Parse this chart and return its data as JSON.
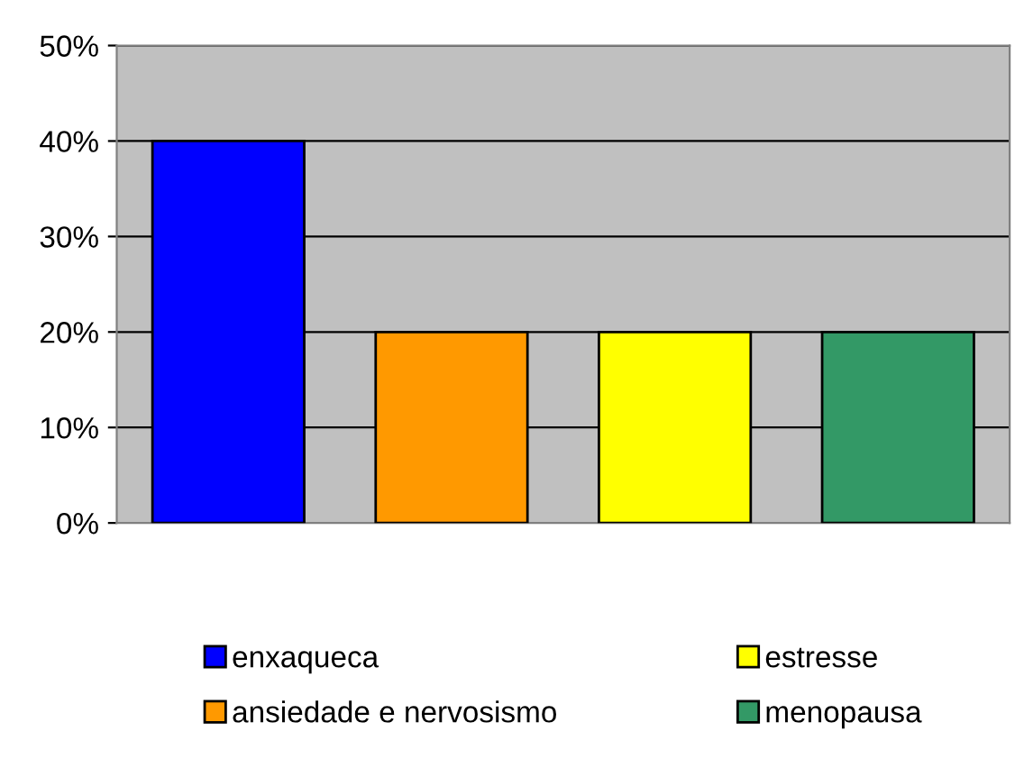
{
  "chart_data": {
    "type": "bar",
    "categories": [
      null,
      null,
      null,
      null
    ],
    "series": [
      {
        "name": "enxaqueca",
        "color": "#0000ff",
        "values": [
          40,
          null,
          null,
          null
        ]
      },
      {
        "name": "ansiedade e nervosismo",
        "color": "#ff9900",
        "values": [
          null,
          20,
          null,
          null
        ]
      },
      {
        "name": "estresse",
        "color": "#ffff00",
        "values": [
          null,
          null,
          20,
          null
        ]
      },
      {
        "name": "menopausa",
        "color": "#339966",
        "values": [
          null,
          null,
          null,
          20
        ]
      }
    ],
    "ylim": [
      0,
      50
    ],
    "yticks": [
      {
        "value": 0,
        "label": "0%"
      },
      {
        "value": 10,
        "label": "10%"
      },
      {
        "value": 20,
        "label": "20%"
      },
      {
        "value": 30,
        "label": "30%"
      },
      {
        "value": 40,
        "label": "40%"
      },
      {
        "value": 50,
        "label": "50%"
      }
    ],
    "grid": "y",
    "legend": "bottom"
  }
}
